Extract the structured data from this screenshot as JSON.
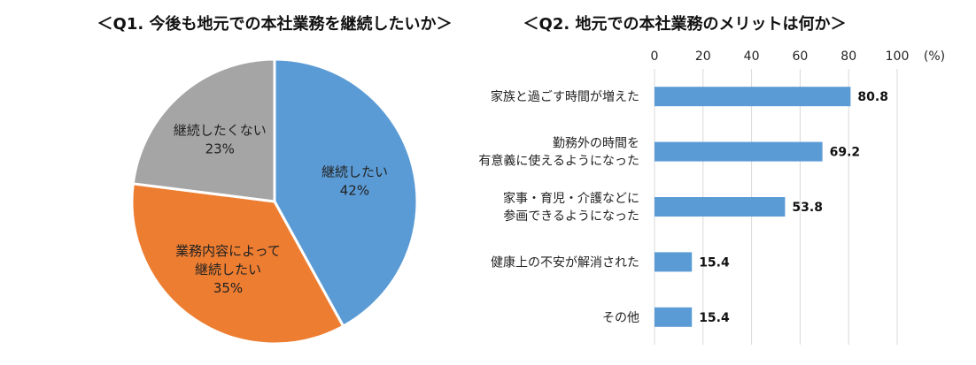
{
  "chart_data": [
    {
      "type": "pie",
      "title": "＜Q1. 今後も地元での本社業務を継続したいか＞",
      "slices": [
        {
          "name": "継続したい",
          "value": 42,
          "label": "42%",
          "color": "#5b9bd5"
        },
        {
          "name": "業務内容によって\n継続したい",
          "value": 35,
          "label": "35%",
          "color": "#ed7d31"
        },
        {
          "name": "継続したくない",
          "value": 23,
          "label": "23%",
          "color": "#a5a5a5"
        }
      ]
    },
    {
      "type": "bar",
      "orientation": "horizontal",
      "title": "＜Q2. 地元での本社業務のメリットは何か＞",
      "unit_label": "(%)",
      "xlim": [
        0,
        100
      ],
      "ticks": [
        "0",
        "20",
        "40",
        "60",
        "80",
        "100"
      ],
      "grid": true,
      "bar_color": "#5b9bd5",
      "categories": [
        "家族と過ごす時間が増えた",
        "勤務外の時間を\n有意義に使えるようになった",
        "家事・育児・介護などに\n参画できるようになった",
        "健康上の不安が解消された",
        "その他"
      ],
      "values": [
        80.8,
        69.2,
        53.8,
        15.4,
        15.4
      ],
      "value_labels": [
        "80.8",
        "69.2",
        "53.8",
        "15.4",
        "15.4"
      ]
    }
  ]
}
